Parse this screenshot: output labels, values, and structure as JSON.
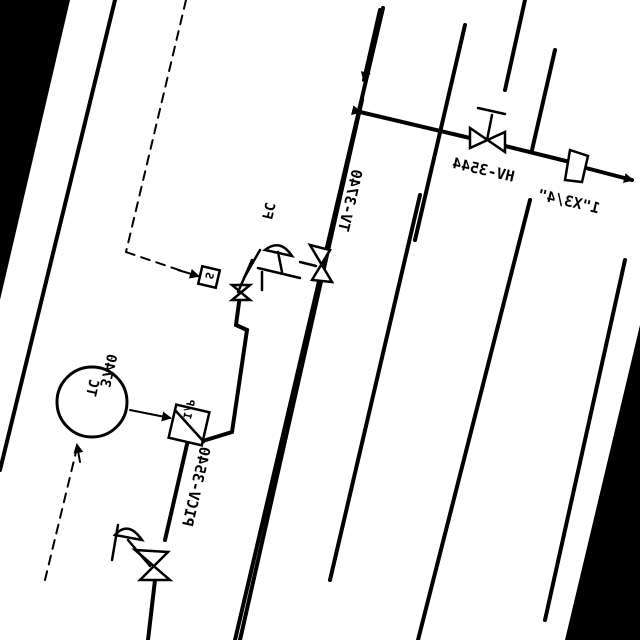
{
  "diagram": {
    "colors": {
      "background": "#000000",
      "paper": "#ffffff",
      "ink": "#000000"
    },
    "tags": {
      "hv": "HV-3544",
      "line_size": "1\"X3/4\"",
      "tv": "TV-3740",
      "fc": "FC",
      "tc_line1": "TC",
      "tc_line2": "3740",
      "solenoid": "S",
      "converter": "I/P",
      "picv": "PICV-3540"
    }
  }
}
